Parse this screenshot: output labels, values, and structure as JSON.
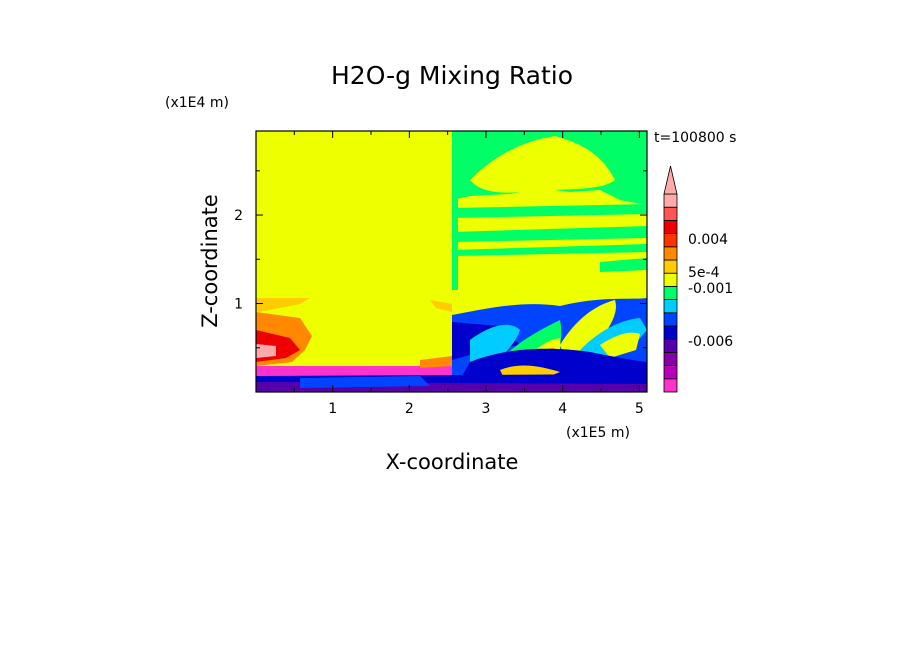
{
  "chart_data": {
    "type": "heatmap",
    "title": "H2O-g Mixing Ratio",
    "xlabel": "X-coordinate",
    "ylabel": "Z-coordinate",
    "x_scale_note": "(x1E5 m)",
    "y_scale_note": "(x1E4 m)",
    "time_label": "t=100800 s",
    "xlim": [
      0,
      5.1
    ],
    "ylim": [
      0,
      2.95
    ],
    "x_ticks": [
      "1",
      "2",
      "3",
      "4",
      "5"
    ],
    "y_ticks": [
      "1",
      "2"
    ],
    "grid": false,
    "colorbar": {
      "position": "right",
      "extend_max": true,
      "labels": [
        "0.004",
        "5e-4",
        "-0.001",
        "-0.006"
      ],
      "colors": [
        "#ff33cc",
        "#bb00bb",
        "#8800aa",
        "#5500aa",
        "#0000cc",
        "#0044ff",
        "#00ccff",
        "#00ff66",
        "#eeff00",
        "#ffcc00",
        "#ff8800",
        "#ff3300",
        "#ee0000",
        "#ff5555",
        "#ffaaaa"
      ]
    }
  }
}
